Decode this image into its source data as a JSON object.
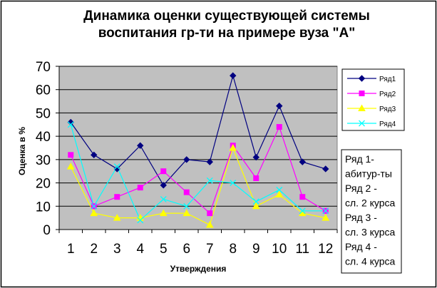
{
  "chart_data": {
    "type": "line",
    "title_lines": [
      "Динамика оценки существующей системы",
      "воспитания гр-ти на примере вуза \"А\""
    ],
    "xlabel": "Утверждения",
    "ylabel": "Оценка в %",
    "ylim": [
      0,
      70
    ],
    "yticks": [
      "0",
      "10",
      "20",
      "30",
      "40",
      "50",
      "60",
      "70"
    ],
    "categories": [
      "1",
      "2",
      "3",
      "4",
      "5",
      "6",
      "7",
      "8",
      "9",
      "10",
      "11",
      "12"
    ],
    "plot_background": "#c0c0c0",
    "grid": true,
    "legend_position": "right",
    "series": [
      {
        "name": "Ряд1",
        "color": "#000080",
        "marker": "diamond",
        "values": [
          46,
          32,
          26,
          36,
          19,
          30,
          29,
          66,
          31,
          53,
          29,
          26
        ]
      },
      {
        "name": "Ряд2",
        "color": "#ff00ff",
        "marker": "square",
        "values": [
          32,
          10,
          14,
          18,
          25,
          16,
          7,
          36,
          22,
          44,
          14,
          8
        ]
      },
      {
        "name": "Ряд3",
        "color": "#ffff00",
        "marker": "triangle",
        "values": [
          27,
          7,
          5,
          5,
          7,
          7,
          2,
          35,
          10,
          15,
          7,
          5
        ]
      },
      {
        "name": "Ряд4",
        "color": "#00ffff",
        "marker": "x",
        "values": [
          45,
          10,
          27,
          4,
          13,
          10,
          21,
          20,
          12,
          17,
          8,
          8
        ]
      }
    ],
    "annotation_lines": [
      "Ряд 1-",
      "абитур-ты",
      "Ряд 2 -",
      "сл. 2 курса",
      "Ряд 3 -",
      "сл. 3 курса",
      "Ряд 4 -",
      "сл. 4 курса"
    ]
  }
}
